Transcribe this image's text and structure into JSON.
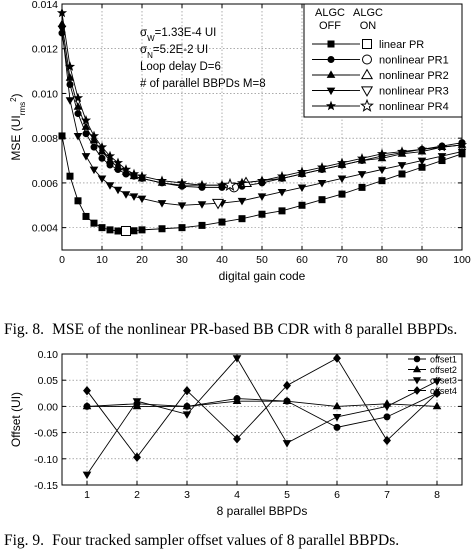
{
  "chart_data": [
    {
      "type": "line",
      "xlabel": "digital gain code",
      "ylabel": "MSE (UI",
      "ylabel_sub": "rms",
      "ylabel_sup": "2",
      "ylabel_close": ")",
      "xlim": [
        0,
        100
      ],
      "ylim": [
        0.003,
        0.014
      ],
      "xticks": [
        0,
        10,
        20,
        30,
        40,
        50,
        60,
        70,
        80,
        90,
        100
      ],
      "yticks": [
        0.004,
        0.006,
        0.008,
        0.01,
        0.012,
        0.014
      ],
      "ytick_labels": [
        "0.004",
        "0.006",
        "0.008",
        "0.010",
        "0.012",
        "0.014"
      ],
      "grid": true,
      "legend_placement": "top-right",
      "legend_headers": [
        [
          "ALGC",
          "OFF"
        ],
        [
          "ALGC",
          "ON"
        ]
      ],
      "annotations": [
        {
          "sym": "σ",
          "sub": "W",
          "rest": "=1.33E-4 UI"
        },
        {
          "sym": "σ",
          "sub": "N",
          "rest": "=5.2E-2 UI"
        },
        {
          "text": "Loop delay D=6"
        },
        {
          "text": "# of parallel BBPDs M=8"
        }
      ],
      "series": [
        {
          "name": "linear PR",
          "marker": "square",
          "x": [
            0,
            2,
            4,
            6,
            8,
            10,
            12,
            14,
            16,
            18,
            20,
            25,
            30,
            35,
            40,
            45,
            50,
            55,
            60,
            65,
            70,
            75,
            80,
            85,
            90,
            95,
            100
          ],
          "y": [
            0.0081,
            0.0063,
            0.0052,
            0.0045,
            0.0042,
            0.004,
            0.0039,
            0.00385,
            0.00385,
            0.00386,
            0.0039,
            0.00395,
            0.004,
            0.0041,
            0.00425,
            0.0044,
            0.0046,
            0.00475,
            0.005,
            0.00525,
            0.0055,
            0.0058,
            0.0061,
            0.0064,
            0.0067,
            0.007,
            0.0073
          ],
          "on_marker": {
            "x": 16,
            "y": 0.00385
          }
        },
        {
          "name": "nonlinear PR1",
          "marker": "circle",
          "x": [
            0,
            2,
            4,
            6,
            8,
            10,
            12,
            14,
            16,
            18,
            20,
            25,
            30,
            35,
            40,
            45,
            50,
            55,
            60,
            65,
            70,
            75,
            80,
            85,
            90,
            95,
            100
          ],
          "y": [
            0.0127,
            0.0104,
            0.0091,
            0.0082,
            0.0076,
            0.0071,
            0.0068,
            0.0066,
            0.0064,
            0.0063,
            0.0062,
            0.006,
            0.00585,
            0.0058,
            0.0058,
            0.00585,
            0.006,
            0.0062,
            0.0064,
            0.0066,
            0.0068,
            0.007,
            0.0072,
            0.00735,
            0.0075,
            0.00765,
            0.0078
          ],
          "on_marker": {
            "x": 43,
            "y": 0.0058
          }
        },
        {
          "name": "nonlinear PR2",
          "marker": "triangle-up",
          "x": [
            0,
            2,
            4,
            6,
            8,
            10,
            12,
            14,
            16,
            18,
            20,
            25,
            30,
            35,
            40,
            45,
            50,
            55,
            60,
            65,
            70,
            75,
            80,
            85,
            90,
            95,
            100
          ],
          "y": [
            0.0131,
            0.0107,
            0.0094,
            0.0085,
            0.0079,
            0.0074,
            0.007,
            0.0067,
            0.0065,
            0.0063,
            0.0062,
            0.006,
            0.0059,
            0.0059,
            0.0059,
            0.006,
            0.0061,
            0.0062,
            0.0064,
            0.0066,
            0.0068,
            0.007,
            0.0071,
            0.0073,
            0.0074,
            0.0076,
            0.0077
          ],
          "on_marker": {
            "x": 46,
            "y": 0.006
          }
        },
        {
          "name": "nonlinear PR3",
          "marker": "triangle-down",
          "x": [
            0,
            2,
            4,
            6,
            8,
            10,
            12,
            14,
            16,
            18,
            20,
            25,
            30,
            35,
            40,
            45,
            50,
            55,
            60,
            65,
            70,
            75,
            80,
            85,
            90,
            95,
            100
          ],
          "y": [
            0.0129,
            0.0097,
            0.0081,
            0.0072,
            0.0066,
            0.0062,
            0.0059,
            0.0057,
            0.0055,
            0.0054,
            0.0053,
            0.0051,
            0.005,
            0.00505,
            0.0051,
            0.0052,
            0.0054,
            0.0056,
            0.0058,
            0.006,
            0.0062,
            0.0064,
            0.0066,
            0.0068,
            0.007,
            0.0072,
            0.0074
          ],
          "on_marker": {
            "x": 39,
            "y": 0.0051
          }
        },
        {
          "name": "nonlinear PR4",
          "marker": "star",
          "x": [
            0,
            2,
            4,
            6,
            8,
            10,
            12,
            14,
            16,
            18,
            20,
            25,
            30,
            35,
            40,
            45,
            50,
            55,
            60,
            65,
            70,
            75,
            80,
            85,
            90,
            95,
            100
          ],
          "y": [
            0.0136,
            0.0112,
            0.0098,
            0.0088,
            0.0081,
            0.0076,
            0.0072,
            0.0069,
            0.0066,
            0.0064,
            0.0063,
            0.0061,
            0.006,
            0.0059,
            0.0059,
            0.006,
            0.0061,
            0.0063,
            0.0065,
            0.0067,
            0.0069,
            0.0071,
            0.0073,
            0.0074,
            0.0075,
            0.0076,
            0.0077
          ],
          "on_marker": {
            "x": 42,
            "y": 0.0059
          }
        }
      ]
    },
    {
      "type": "line",
      "xlabel": "8 parallel BBPDs",
      "ylabel": "Offset (UI)",
      "xlim": [
        0.5,
        8.5
      ],
      "ylim": [
        -0.15,
        0.1
      ],
      "xticks": [
        1,
        2,
        3,
        4,
        5,
        6,
        7,
        8
      ],
      "yticks": [
        -0.15,
        -0.1,
        -0.05,
        0.0,
        0.05,
        0.1
      ],
      "ytick_labels": [
        "-0.15",
        "-0.10",
        "-0.05",
        "0.00",
        "0.05",
        "0.10"
      ],
      "grid": true,
      "legend_placement": "top-right",
      "series": [
        {
          "name": "offset1",
          "marker": "circle",
          "x": [
            1,
            2,
            3,
            4,
            5,
            6,
            7,
            8
          ],
          "y": [
            0.0,
            0.005,
            0.0,
            0.015,
            0.01,
            -0.04,
            -0.02,
            0.025
          ]
        },
        {
          "name": "offset2",
          "marker": "triangle-up",
          "x": [
            1,
            2,
            3,
            4,
            5,
            6,
            7,
            8
          ],
          "y": [
            0.0,
            0.0,
            0.0,
            0.01,
            0.01,
            0.0,
            0.005,
            0.0
          ]
        },
        {
          "name": "offset3",
          "marker": "triangle-down",
          "x": [
            1,
            2,
            3,
            4,
            5,
            6,
            7,
            8
          ],
          "y": [
            -0.13,
            0.01,
            -0.015,
            0.092,
            -0.07,
            -0.02,
            0.0,
            0.048
          ]
        },
        {
          "name": "offset4",
          "marker": "diamond",
          "x": [
            1,
            2,
            3,
            4,
            5,
            6,
            7,
            8
          ],
          "y": [
            0.03,
            -0.097,
            0.03,
            -0.062,
            0.04,
            0.092,
            -0.065,
            0.025
          ]
        }
      ]
    }
  ],
  "captions": [
    {
      "num": "Fig. 8.",
      "text": "MSE of the nonlinear PR-based BB CDR with 8 parallel BBPDs."
    },
    {
      "num": "Fig. 9.",
      "text": "Four tracked sampler offset values of 8 parallel BBPDs."
    }
  ]
}
